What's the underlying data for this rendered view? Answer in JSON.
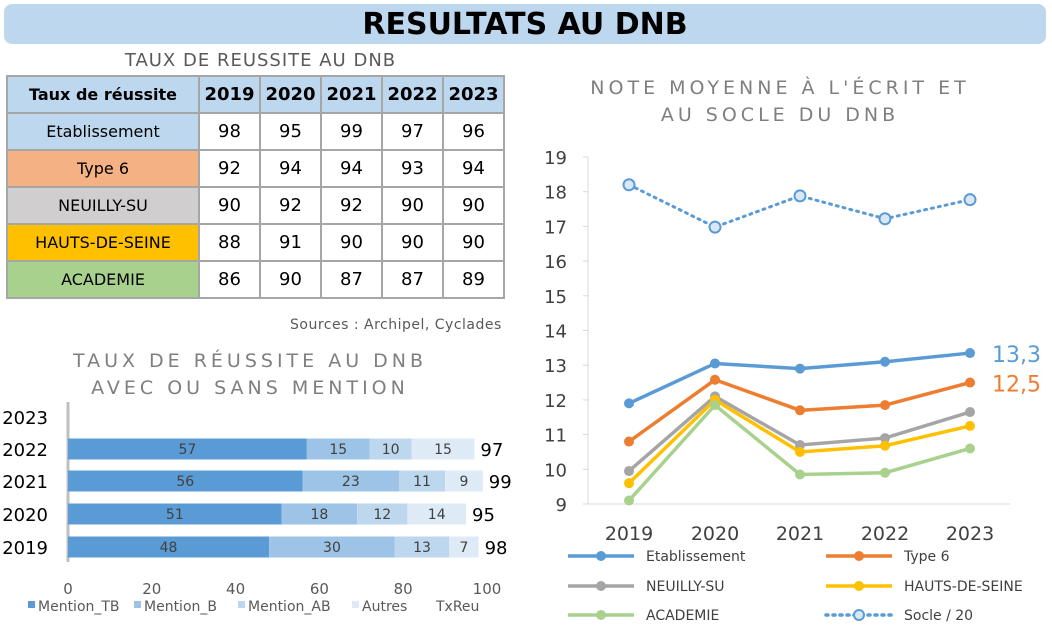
{
  "banner_title": "RESULTATS AU DNB",
  "table": {
    "title": "TAUX DE REUSSITE AU DNB",
    "header_label": "Taux de réussite",
    "years": [
      "2019",
      "2020",
      "2021",
      "2022",
      "2023"
    ],
    "rows": [
      {
        "label": "Etablissement",
        "color": "#bdd7ee",
        "values": [
          "98",
          "95",
          "99",
          "97",
          "96"
        ]
      },
      {
        "label": "Type 6",
        "color": "#f4b183",
        "values": [
          "92",
          "94",
          "94",
          "93",
          "94"
        ]
      },
      {
        "label": "NEUILLY-SU",
        "color": "#d0cece",
        "values": [
          "90",
          "92",
          "92",
          "90",
          "90"
        ]
      },
      {
        "label": "HAUTS-DE-SEINE",
        "color": "#ffc000",
        "values": [
          "88",
          "91",
          "90",
          "90",
          "90"
        ]
      },
      {
        "label": "ACADEMIE",
        "color": "#a9d18e",
        "values": [
          "86",
          "90",
          "87",
          "87",
          "89"
        ]
      }
    ],
    "header_bg": "#bdd7ee",
    "sources": "Sources : Archipel, Cyclades"
  },
  "chart_data": [
    {
      "type": "bar",
      "orientation": "horizontal",
      "stacked": true,
      "title_line1": "TAUX DE RÉUSSITE AU DNB",
      "title_line2": "AVEC OU SANS MENTION",
      "categories": [
        "2023",
        "2022",
        "2021",
        "2020",
        "2019"
      ],
      "series": [
        {
          "name": "Mention_TB",
          "color": "#5b9bd5",
          "values": [
            null,
            57,
            56,
            51,
            48
          ]
        },
        {
          "name": "Mention_B",
          "color": "#9dc3e6",
          "values": [
            null,
            15,
            23,
            18,
            30
          ]
        },
        {
          "name": "Mention_AB",
          "color": "#bdd7ee",
          "values": [
            null,
            10,
            11,
            12,
            13
          ]
        },
        {
          "name": "Autres",
          "color": "#deebf7",
          "values": [
            null,
            15,
            9,
            14,
            7
          ]
        }
      ],
      "total_series": {
        "name": "TxReu",
        "values": [
          null,
          97,
          99,
          95,
          98
        ]
      },
      "xlim": [
        0,
        100
      ],
      "xticks": [
        "0",
        "20",
        "40",
        "60",
        "80",
        "100"
      ],
      "legend": "bottom"
    },
    {
      "type": "line",
      "title_line1": "NOTE MOYENNE À L'ÉCRIT ET",
      "title_line2": "AU SOCLE DU DNB",
      "x": [
        "2019",
        "2020",
        "2021",
        "2022",
        "2023"
      ],
      "ylim": [
        9,
        19
      ],
      "yticks": [
        "9",
        "10",
        "11",
        "12",
        "13",
        "14",
        "15",
        "16",
        "17",
        "18",
        "19"
      ],
      "series": [
        {
          "name": "Etablissement",
          "color": "#5b9bd5",
          "dashed": false,
          "values": [
            11.9,
            13.05,
            12.9,
            13.1,
            13.35
          ]
        },
        {
          "name": "Type 6",
          "color": "#ed7d31",
          "dashed": false,
          "values": [
            10.8,
            12.58,
            11.7,
            11.85,
            12.5
          ]
        },
        {
          "name": "NEUILLY-SU",
          "color": "#a5a5a5",
          "dashed": false,
          "values": [
            9.95,
            12.1,
            10.7,
            10.9,
            11.65
          ]
        },
        {
          "name": "HAUTS-DE-SEINE",
          "color": "#ffc000",
          "dashed": false,
          "values": [
            9.6,
            12.0,
            10.5,
            10.68,
            11.25
          ]
        },
        {
          "name": "ACADEMIE",
          "color": "#a9d18e",
          "dashed": false,
          "values": [
            9.1,
            11.85,
            9.85,
            9.9,
            10.6
          ]
        },
        {
          "name": "Socle / 20",
          "color": "#5b9bd5",
          "dashed": true,
          "values": [
            18.2,
            16.98,
            17.88,
            17.22,
            17.77
          ]
        }
      ],
      "end_labels": [
        {
          "text": "13,3",
          "color": "#5b9bd5"
        },
        {
          "text": "12,5",
          "color": "#ed7d31"
        }
      ],
      "legend": "bottom"
    }
  ]
}
